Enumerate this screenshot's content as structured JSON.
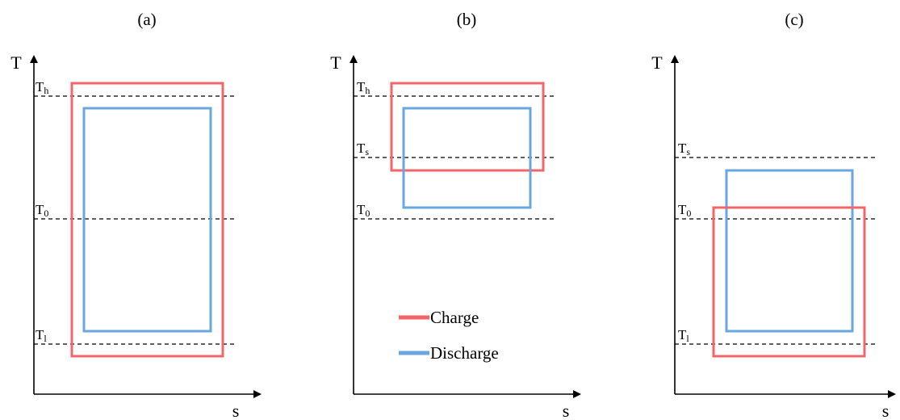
{
  "colors": {
    "charge": "#f2666a",
    "discharge": "#6aa7dc",
    "axis": "#000000"
  },
  "legend": {
    "charge": "Charge",
    "discharge": "Discharge"
  },
  "panels": [
    {
      "title": "(a)",
      "y_axis_label": "T",
      "x_axis_label": "s",
      "levels": [
        {
          "main": "T",
          "sub": "h"
        },
        {
          "main": "T",
          "sub": "0"
        },
        {
          "main": "T",
          "sub": "l"
        }
      ]
    },
    {
      "title": "(b)",
      "y_axis_label": "T",
      "x_axis_label": "s",
      "levels": [
        {
          "main": "T",
          "sub": "h"
        },
        {
          "main": "T",
          "sub": "s"
        },
        {
          "main": "T",
          "sub": "0"
        }
      ]
    },
    {
      "title": "(c)",
      "y_axis_label": "T",
      "x_axis_label": "s",
      "levels": [
        {
          "main": "T",
          "sub": "s"
        },
        {
          "main": "T",
          "sub": "0"
        },
        {
          "main": "T",
          "sub": "l"
        }
      ]
    }
  ]
}
